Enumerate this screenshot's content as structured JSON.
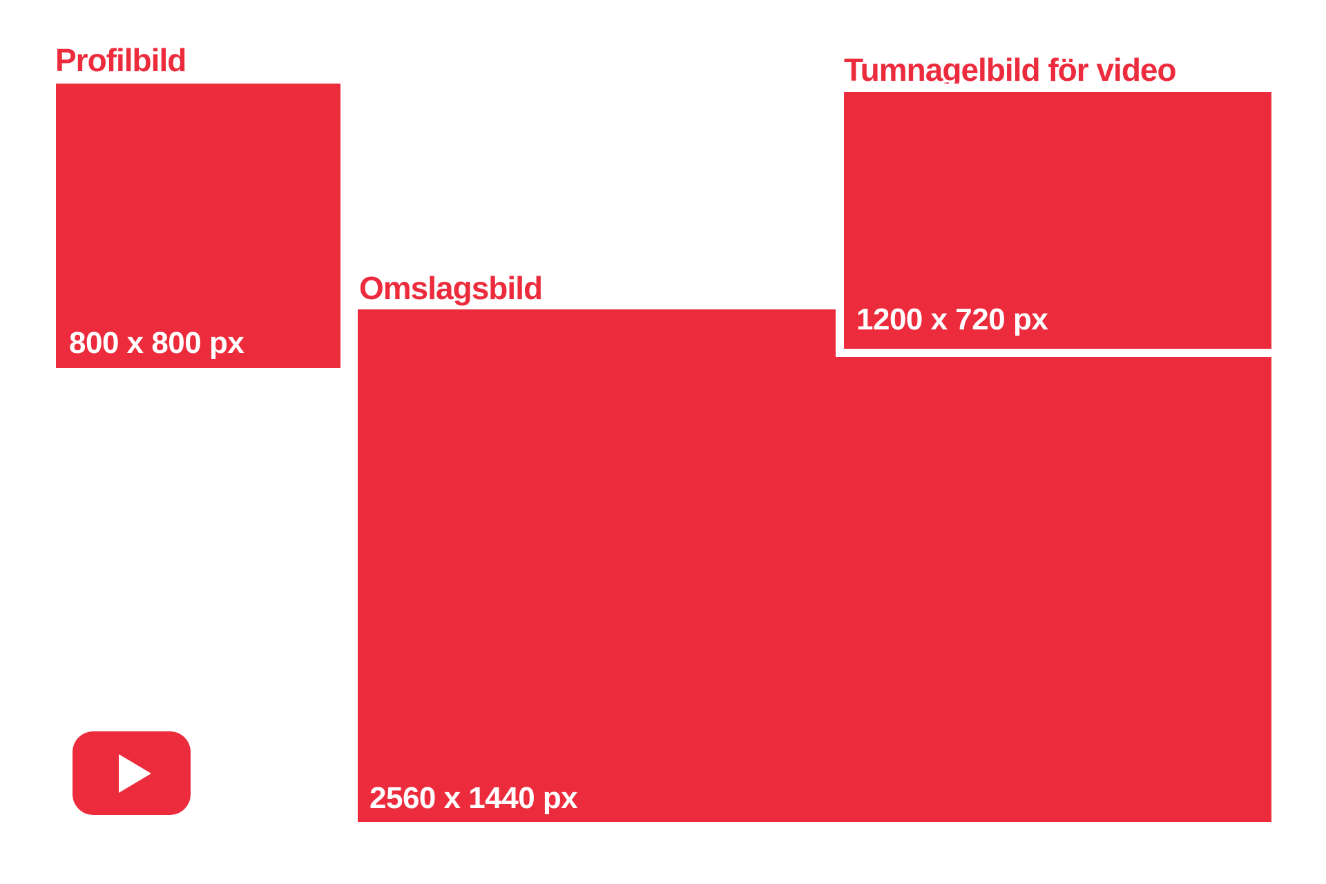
{
  "page": {
    "background": "#FFFFFF",
    "accent_red": "#EC2B3C",
    "label_color": "#FFFFFF",
    "description": "YouTube image size guide diagram"
  },
  "profile": {
    "title": "Profilbild",
    "size": "800 x 800 px"
  },
  "cover": {
    "title": "Omslagsbild",
    "size": "2560 x 1440 px"
  },
  "thumbnail": {
    "title": "Tumnagelbild för video",
    "size": "1200 x 720 px"
  },
  "logo": {
    "icon": "youtube-play-icon"
  }
}
